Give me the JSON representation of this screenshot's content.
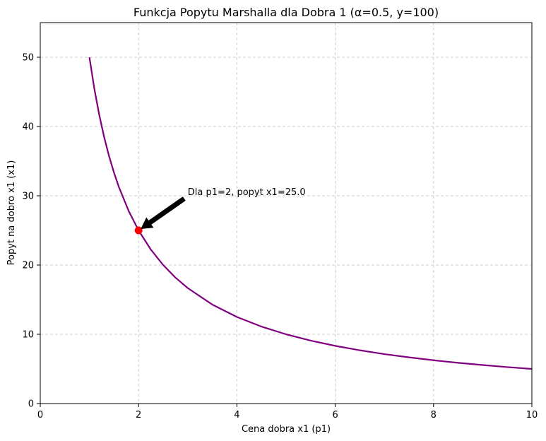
{
  "chart_data": {
    "type": "line",
    "title": "Funkcja Popytu Marshalla dla Dobra 1 (α=0.5, y=100)",
    "xlabel": "Cena dobra x1 (p1)",
    "ylabel": "Popyt na dobro x1 (x1)",
    "xlim": [
      0,
      10
    ],
    "ylim": [
      0,
      55
    ],
    "xticks": [
      0,
      2,
      4,
      6,
      8,
      10
    ],
    "yticks": [
      0,
      10,
      20,
      30,
      40,
      50
    ],
    "grid": true,
    "series": [
      {
        "color": "#800080",
        "x": [
          1,
          1.1,
          1.2,
          1.3,
          1.4,
          1.5,
          1.6,
          1.8,
          2,
          2.25,
          2.5,
          2.75,
          3,
          3.5,
          4,
          4.5,
          5,
          5.5,
          6,
          6.5,
          7,
          7.5,
          8,
          8.5,
          9,
          9.5,
          10
        ],
        "y": [
          50,
          45.45,
          41.67,
          38.46,
          35.71,
          33.33,
          31.25,
          27.78,
          25,
          22.22,
          20,
          18.18,
          16.67,
          14.29,
          12.5,
          11.11,
          10,
          9.09,
          8.33,
          7.69,
          7.14,
          6.67,
          6.25,
          5.88,
          5.56,
          5.26,
          5
        ]
      }
    ],
    "highlight_point": {
      "x": 2,
      "y": 25,
      "color": "#ff0000"
    },
    "annotation": {
      "text": "Dla p1=2, popyt x1=25.0",
      "text_x": 3,
      "text_y": 30,
      "target_x": 2,
      "target_y": 25
    }
  }
}
